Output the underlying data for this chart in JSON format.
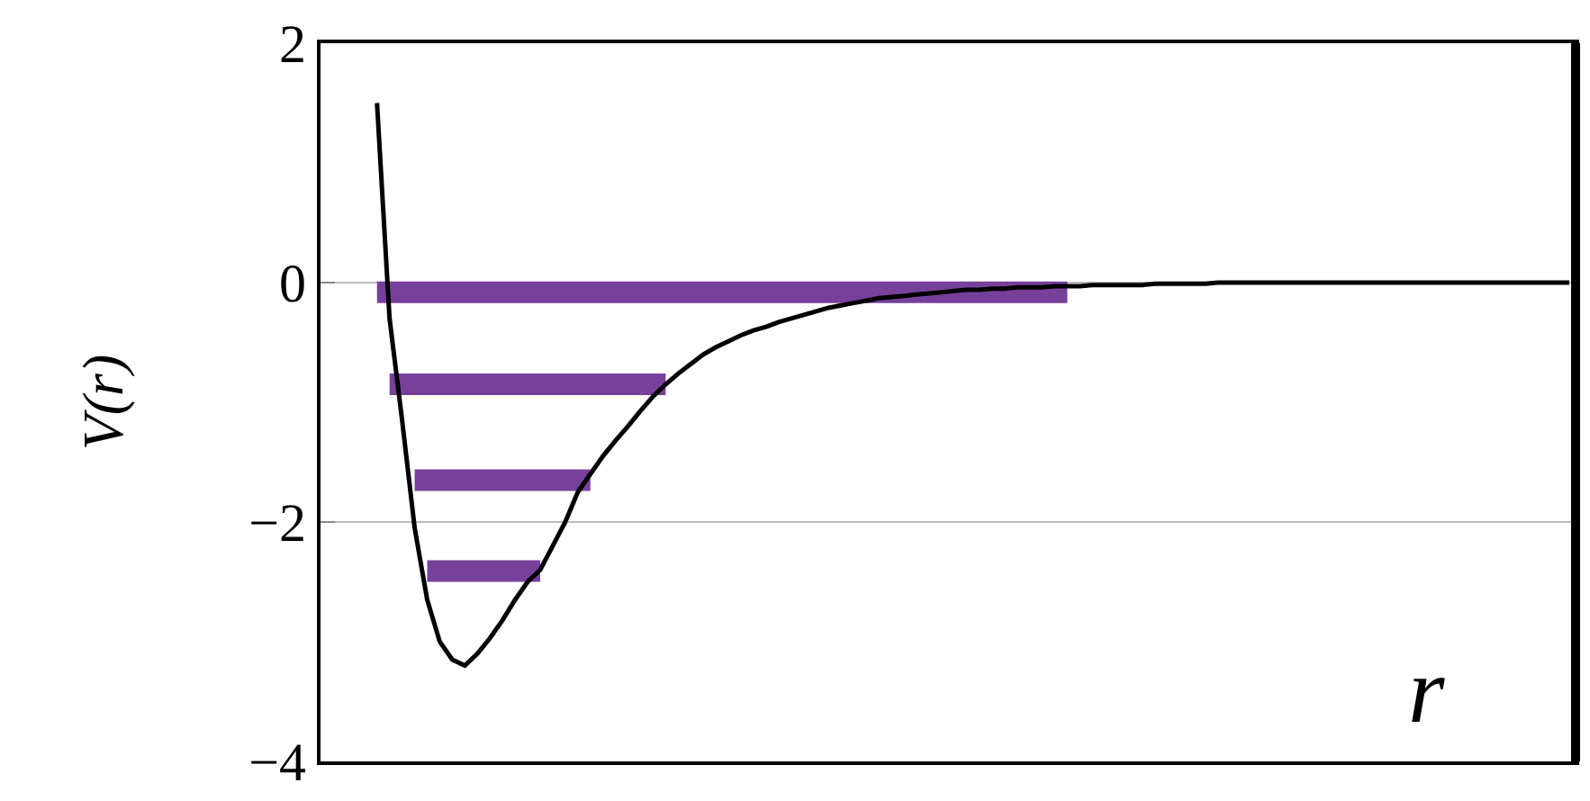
{
  "chart_data": {
    "type": "line",
    "xlabel": "r",
    "ylabel": "V(r)",
    "ylim": [
      -4,
      2
    ],
    "yticks": [
      -4,
      -2,
      0,
      2
    ],
    "grid": "y",
    "tick_labels": "y",
    "categories": [
      null,
      null,
      null,
      null,
      null,
      null,
      null,
      null,
      null,
      null,
      null,
      null,
      null,
      null,
      null,
      null,
      null,
      null,
      null,
      null,
      null,
      null,
      null,
      null,
      null,
      null,
      null,
      null,
      null,
      null,
      null,
      null,
      null,
      null,
      null,
      null,
      null,
      null,
      null,
      null,
      null,
      null,
      null,
      null,
      null,
      null,
      null,
      null,
      null,
      null,
      null,
      null,
      null,
      null,
      null,
      null,
      null,
      null,
      null,
      null,
      null,
      null,
      null,
      null,
      null,
      null,
      null,
      null,
      null,
      null,
      null,
      null,
      null,
      null,
      null,
      null,
      null,
      null,
      null,
      null,
      null,
      null,
      null,
      null,
      null,
      null,
      null,
      null,
      null,
      null,
      null,
      null,
      null,
      null,
      null,
      null,
      null,
      null,
      null,
      null
    ],
    "series": [
      {
        "color": "#000000",
        "values": [
          null,
          null,
          null,
          null,
          1.5,
          -0.3,
          -1.15,
          -2.05,
          -2.65,
          -3.0,
          -3.15,
          -3.2,
          -3.1,
          -2.97,
          -2.82,
          -2.65,
          -2.5,
          -2.4,
          -2.2,
          -2.0,
          -1.75,
          -1.6,
          -1.45,
          -1.32,
          -1.2,
          -1.07,
          -0.95,
          -0.85,
          -0.76,
          -0.68,
          -0.6,
          -0.54,
          -0.49,
          -0.44,
          -0.4,
          -0.37,
          -0.33,
          -0.3,
          -0.27,
          -0.24,
          -0.21,
          -0.19,
          -0.17,
          -0.15,
          -0.13,
          -0.12,
          -0.11,
          -0.1,
          -0.09,
          -0.08,
          -0.07,
          -0.06,
          -0.06,
          -0.05,
          -0.05,
          -0.04,
          -0.04,
          -0.04,
          -0.03,
          -0.03,
          -0.03,
          -0.02,
          -0.02,
          -0.02,
          -0.02,
          -0.02,
          -0.01,
          -0.01,
          -0.01,
          -0.01,
          -0.01,
          0,
          0,
          0,
          0,
          0,
          0,
          0,
          0,
          0,
          0,
          0,
          0,
          0,
          0,
          0,
          0,
          0,
          0,
          0,
          0,
          0,
          0,
          0,
          0,
          0,
          0,
          0,
          0,
          0
        ]
      },
      {
        "color": "#77409a",
        "values": [
          null,
          null,
          null,
          null,
          -0.08,
          -0.08,
          -0.08,
          -0.08,
          -0.08,
          -0.08,
          -0.08,
          -0.08,
          -0.08,
          -0.08,
          -0.08,
          -0.08,
          -0.08,
          -0.08,
          -0.08,
          -0.08,
          -0.08,
          -0.08,
          -0.08,
          -0.08,
          -0.08,
          -0.08,
          -0.08,
          -0.08,
          -0.08,
          -0.08,
          -0.08,
          -0.08,
          -0.08,
          -0.08,
          -0.08,
          -0.08,
          -0.08,
          -0.08,
          -0.08,
          -0.08,
          -0.08,
          -0.08,
          -0.08,
          -0.08,
          -0.08,
          -0.08,
          -0.08,
          -0.08,
          -0.08,
          -0.08,
          -0.08,
          -0.08,
          -0.08,
          -0.08,
          -0.08,
          -0.08,
          -0.08,
          -0.08,
          -0.08,
          -0.08,
          null,
          null,
          null,
          null,
          null,
          null,
          null,
          null,
          null,
          null,
          null,
          null,
          null,
          null,
          null,
          null,
          null,
          null,
          null,
          null,
          null,
          null,
          null,
          null,
          null,
          null,
          null,
          null,
          null,
          null,
          null,
          null,
          null,
          null,
          null,
          null,
          null,
          null,
          null,
          null
        ]
      },
      {
        "color": "#77409a",
        "values": [
          null,
          null,
          null,
          null,
          null,
          -0.85,
          -0.85,
          -0.85,
          -0.85,
          -0.85,
          -0.85,
          -0.85,
          -0.85,
          -0.85,
          -0.85,
          -0.85,
          -0.85,
          -0.85,
          -0.85,
          -0.85,
          -0.85,
          -0.85,
          -0.85,
          -0.85,
          -0.85,
          -0.85,
          -0.85,
          -0.85,
          null,
          null,
          null,
          null,
          null,
          null,
          null,
          null,
          null,
          null,
          null,
          null,
          null,
          null,
          null,
          null,
          null,
          null,
          null,
          null,
          null,
          null,
          null,
          null,
          null,
          null,
          null,
          null,
          null,
          null,
          null,
          null,
          null,
          null,
          null,
          null,
          null,
          null,
          null,
          null,
          null,
          null,
          null,
          null,
          null,
          null,
          null,
          null,
          null,
          null,
          null,
          null,
          null,
          null,
          null,
          null,
          null,
          null,
          null,
          null,
          null,
          null,
          null,
          null,
          null,
          null,
          null,
          null,
          null,
          null,
          null,
          null
        ]
      },
      {
        "color": "#77409a",
        "values": [
          null,
          null,
          null,
          null,
          null,
          null,
          null,
          -1.65,
          -1.65,
          -1.65,
          -1.65,
          -1.65,
          -1.65,
          -1.65,
          -1.65,
          -1.65,
          -1.65,
          -1.65,
          -1.65,
          -1.65,
          -1.65,
          -1.65,
          null,
          null,
          null,
          null,
          null,
          null,
          null,
          null,
          null,
          null,
          null,
          null,
          null,
          null,
          null,
          null,
          null,
          null,
          null,
          null,
          null,
          null,
          null,
          null,
          null,
          null,
          null,
          null,
          null,
          null,
          null,
          null,
          null,
          null,
          null,
          null,
          null,
          null,
          null,
          null,
          null,
          null,
          null,
          null,
          null,
          null,
          null,
          null,
          null,
          null,
          null,
          null,
          null,
          null,
          null,
          null,
          null,
          null,
          null,
          null,
          null,
          null,
          null,
          null,
          null,
          null,
          null,
          null,
          null,
          null,
          null,
          null,
          null,
          null,
          null,
          null,
          null,
          null
        ]
      },
      {
        "color": "#77409a",
        "values": [
          null,
          null,
          null,
          null,
          null,
          null,
          null,
          null,
          -2.41,
          -2.41,
          -2.41,
          -2.41,
          -2.41,
          -2.41,
          -2.41,
          -2.41,
          -2.41,
          -2.41,
          null,
          null,
          null,
          null,
          null,
          null,
          null,
          null,
          null,
          null,
          null,
          null,
          null,
          null,
          null,
          null,
          null,
          null,
          null,
          null,
          null,
          null,
          null,
          null,
          null,
          null,
          null,
          null,
          null,
          null,
          null,
          null,
          null,
          null,
          null,
          null,
          null,
          null,
          null,
          null,
          null,
          null,
          null,
          null,
          null,
          null,
          null,
          null,
          null,
          null,
          null,
          null,
          null,
          null,
          null,
          null,
          null,
          null,
          null,
          null,
          null,
          null,
          null,
          null,
          null,
          null,
          null,
          null,
          null,
          null,
          null,
          null,
          null,
          null,
          null,
          null,
          null,
          null,
          null,
          null,
          null,
          null
        ]
      }
    ]
  }
}
